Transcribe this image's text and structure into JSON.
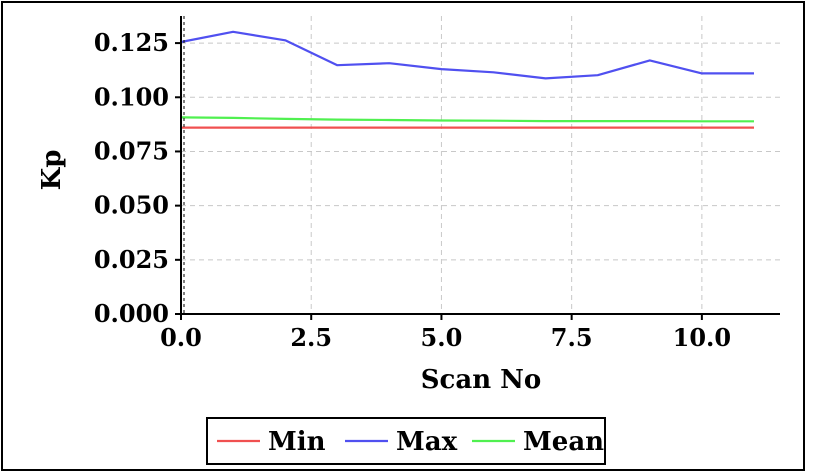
{
  "chart_data": {
    "type": "line",
    "xlabel": "Scan No",
    "ylabel": "Kp",
    "xlim": [
      0,
      11.5
    ],
    "ylim": [
      0,
      0.1375
    ],
    "xticks": [
      0,
      2.5,
      5,
      7.5,
      10
    ],
    "xtick_labels": [
      "0.0",
      "2.5",
      "5.0",
      "7.5",
      "10.0"
    ],
    "yticks": [
      0,
      0.025,
      0.05,
      0.075,
      0.1,
      0.125
    ],
    "ytick_labels": [
      "0.000",
      "0.025",
      "0.050",
      "0.075",
      "0.100",
      "0.125"
    ],
    "grid": true,
    "legend_position": "bottom",
    "series": [
      {
        "name": "Min",
        "color": "#f05050",
        "x": [
          0,
          1,
          2,
          3,
          4,
          5,
          6,
          7,
          8,
          9,
          10,
          11
        ],
        "y": [
          0.086,
          0.086,
          0.086,
          0.086,
          0.086,
          0.086,
          0.086,
          0.086,
          0.086,
          0.086,
          0.086,
          0.086
        ]
      },
      {
        "name": "Max",
        "color": "#5050f0",
        "x": [
          0,
          1,
          2,
          3,
          4,
          5,
          6,
          7,
          8,
          9,
          10,
          11
        ],
        "y": [
          0.1255,
          0.1302,
          0.1263,
          0.1148,
          0.1157,
          0.113,
          0.1115,
          0.1087,
          0.1102,
          0.117,
          0.111,
          0.111
        ]
      },
      {
        "name": "Mean",
        "color": "#50f050",
        "x": [
          0,
          1,
          2,
          3,
          4,
          5,
          6,
          7,
          8,
          9,
          10,
          11
        ],
        "y": [
          0.0907,
          0.0905,
          0.09,
          0.0897,
          0.0895,
          0.0893,
          0.0892,
          0.089,
          0.089,
          0.089,
          0.0889,
          0.0889
        ]
      }
    ]
  }
}
